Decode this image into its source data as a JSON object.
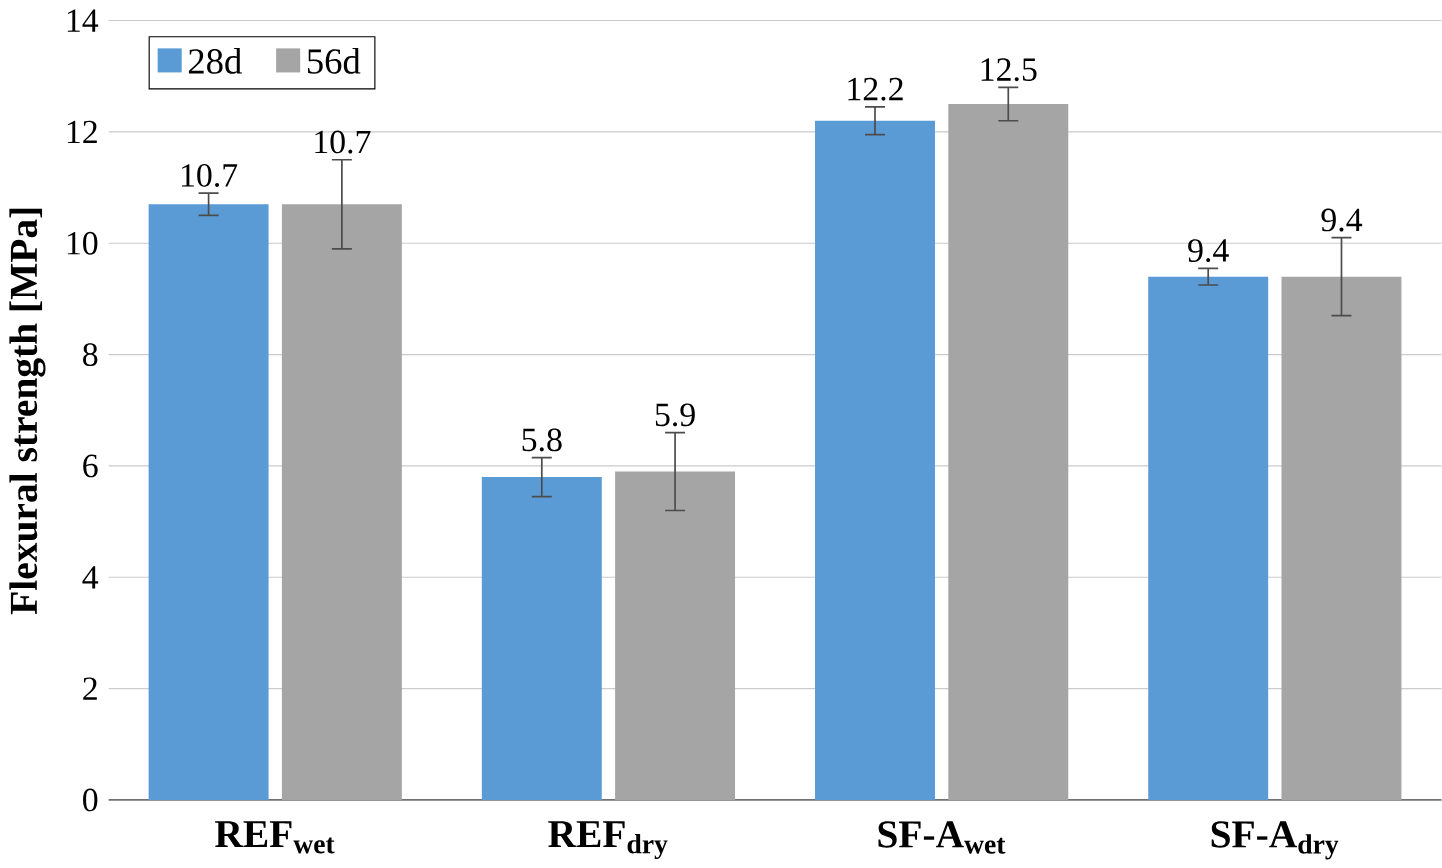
{
  "chart_data": {
    "type": "bar",
    "ylabel": "Flexural strength [MPa]",
    "categories": [
      "REF$_{wet}$",
      "REF$_{dry}$",
      "SF-A$_{wet}$",
      "SF-A$_{dry}$"
    ],
    "series": [
      {
        "name": "28d",
        "color": "#5b9bd5",
        "values": [
          10.7,
          5.8,
          12.2,
          9.4
        ],
        "errors": [
          0.2,
          0.35,
          0.25,
          0.15
        ]
      },
      {
        "name": "56d",
        "color": "#a5a5a5",
        "values": [
          10.7,
          5.9,
          12.5,
          9.4
        ],
        "errors": [
          0.8,
          0.7,
          0.3,
          0.7
        ]
      }
    ],
    "ylim": [
      0,
      14
    ],
    "yticks": [
      0,
      2,
      4,
      6,
      8,
      10,
      12,
      14
    ],
    "grid": "y",
    "legend": "top left",
    "data_labels": true
  }
}
